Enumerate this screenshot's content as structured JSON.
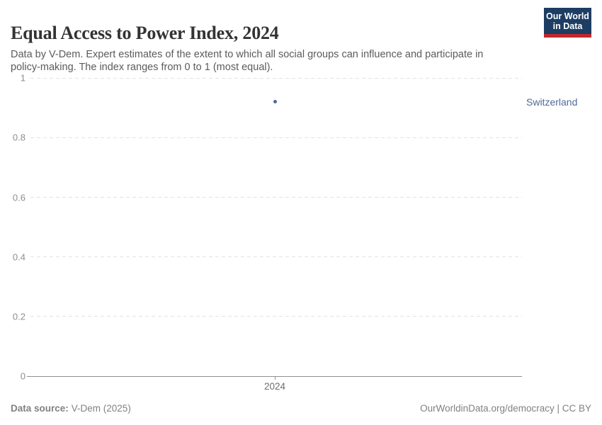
{
  "header": {
    "title": "Equal Access to Power Index, 2024",
    "subtitle": "Data by V-Dem. Expert estimates of the extent to which all social groups can influence and participate in policy-making. The index ranges from 0 to 1 (most equal).",
    "logo": {
      "line1": "Our World",
      "line2": "in Data",
      "bg_color": "#1d3d63",
      "stripe_color": "#c2262c"
    }
  },
  "chart_data": {
    "type": "scatter",
    "title": "Equal Access to Power Index, 2024",
    "x": [
      2024
    ],
    "xtick_labels": [
      "2024"
    ],
    "series": [
      {
        "name": "Switzerland",
        "values": [
          0.92
        ],
        "color": "#4c6a9c"
      }
    ],
    "xlabel": "",
    "ylabel": "",
    "ylim": [
      0,
      1
    ],
    "yticks": [
      0,
      0.2,
      0.4,
      0.6,
      0.8,
      1
    ],
    "ytick_labels": [
      "0",
      "0.2",
      "0.4",
      "0.6",
      "0.8",
      "1"
    ],
    "grid": "horizontal-dashed",
    "legend_position": "entity-label-right"
  },
  "footer": {
    "source_label": "Data source:",
    "source_value": "V-Dem (2025)",
    "credit": "OurWorldinData.org/democracy | CC BY"
  },
  "colors": {
    "title_text": "#333333",
    "subtitle_text": "#5b5b5b",
    "axis_label": "#8e8e8e",
    "gridline": "#e3e3e3",
    "axis_line": "#8f8f8f",
    "footer_text": "#818181",
    "series_blue": "#4c6a9c",
    "logo_navy": "#1d3d63",
    "logo_red": "#c2262c"
  }
}
